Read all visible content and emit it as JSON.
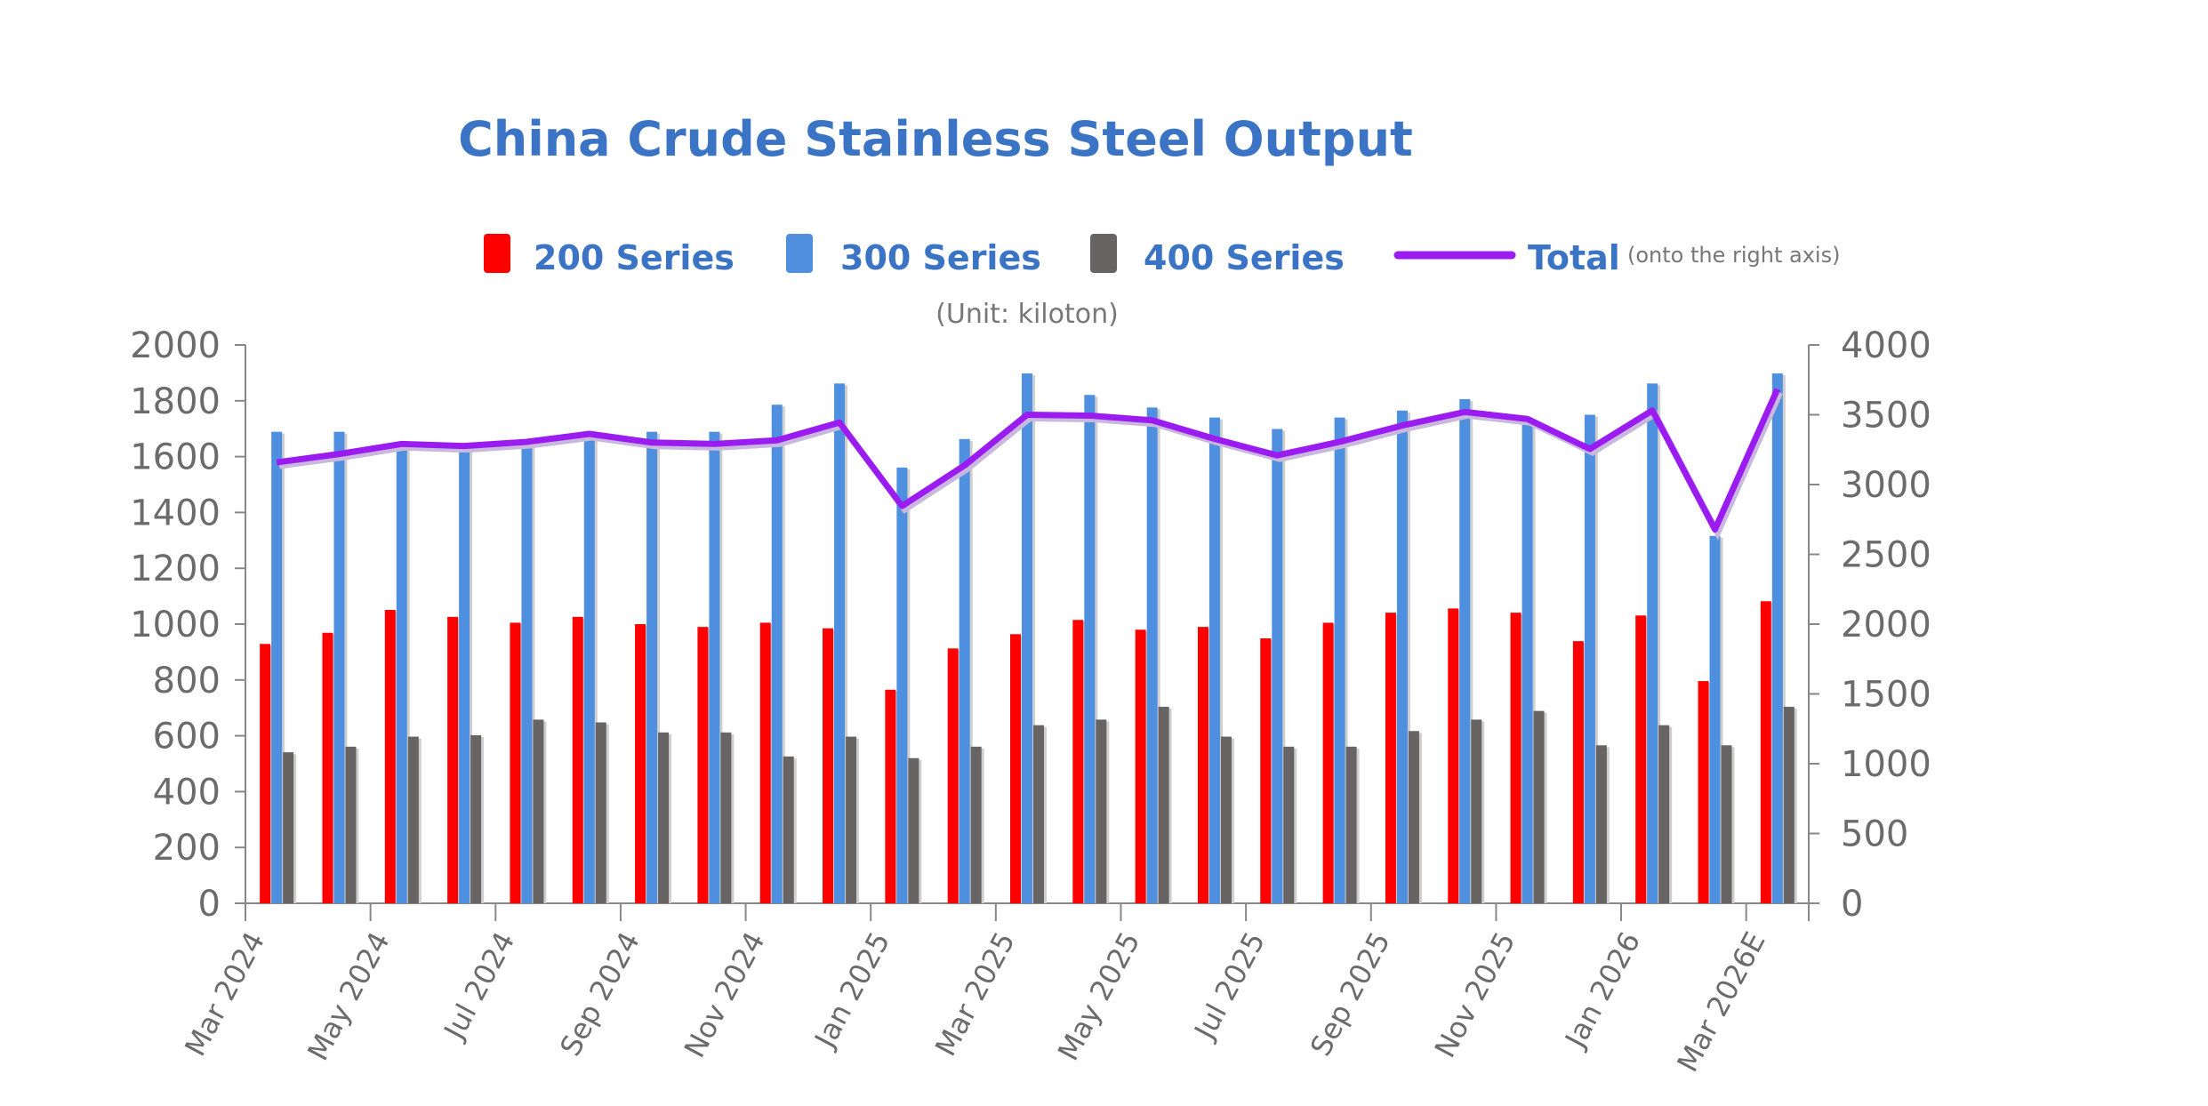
{
  "chart_data": {
    "type": "bar",
    "title": "China Crude Stainless Steel Output",
    "unit_note": "(Unit: kiloton)",
    "categories": [
      "Mar 2024",
      "Apr 2024",
      "May 2024",
      "Jun 2024",
      "Jul 2024",
      "Aug 2024",
      "Sep 2024",
      "Oct 2024",
      "Nov 2024",
      "Dec 2024",
      "Jan 2025",
      "Feb 2025",
      "Mar 2025",
      "Apr 2025",
      "May 2025",
      "Jun 2025",
      "Jul 2025",
      "Aug 2025",
      "Sep 2025",
      "Oct 2025",
      "Nov 2025",
      "Dec 2025",
      "Jan 2026",
      "Feb 2026",
      "Mar 2026E"
    ],
    "x_tick_labels": [
      "Mar 2024",
      "May 2024",
      "Jul 2024",
      "Sep 2024",
      "Nov 2024",
      "Jan 2025",
      "Mar 2025",
      "May 2025",
      "Jul 2025",
      "Sep 2025",
      "Nov 2025",
      "Jan 2026",
      "Mar 2026E"
    ],
    "series": [
      {
        "name": "200 Series",
        "axis": "left",
        "type": "bar",
        "color": "#ff0000",
        "values": [
          929,
          969,
          1051,
          1026,
          1005,
          1026,
          1000,
          990,
          1005,
          985,
          765,
          913,
          964,
          1015,
          980,
          990,
          949,
          1005,
          1041,
          1056,
          1041,
          939,
          1031,
          796,
          1082
        ]
      },
      {
        "name": "300 Series",
        "axis": "left",
        "type": "bar",
        "color": "#4f8fdf",
        "values": [
          1689,
          1689,
          1643,
          1648,
          1643,
          1689,
          1689,
          1689,
          1786,
          1862,
          1561,
          1663,
          1898,
          1821,
          1776,
          1740,
          1699,
          1740,
          1765,
          1806,
          1740,
          1750,
          1862,
          1316,
          1898
        ]
      },
      {
        "name": "400 Series",
        "axis": "left",
        "type": "bar",
        "color": "#686464",
        "values": [
          541,
          561,
          597,
          602,
          658,
          648,
          612,
          612,
          526,
          597,
          520,
          561,
          638,
          658,
          704,
          597,
          561,
          561,
          617,
          658,
          689,
          566,
          638,
          566,
          704
        ]
      },
      {
        "name": "Total",
        "axis": "right",
        "type": "line",
        "color": "#9b1cf0",
        "values": [
          3159,
          3219,
          3291,
          3276,
          3306,
          3363,
          3301,
          3291,
          3317,
          3444,
          2846,
          3137,
          3500,
          3494,
          3460,
          3327,
          3209,
          3306,
          3423,
          3520,
          3470,
          3255,
          3531,
          2678,
          3684
        ]
      }
    ],
    "legend_note": "(onto the right axis)",
    "ylim": [
      0,
      2000
    ],
    "y_ticks": [
      0,
      200,
      400,
      600,
      800,
      1000,
      1200,
      1400,
      1600,
      1800,
      2000
    ],
    "y2lim": [
      0,
      4000
    ],
    "y2_ticks": [
      0,
      500,
      1000,
      1500,
      2000,
      2500,
      3000,
      3500,
      4000
    ],
    "grid": false,
    "legend_position": "top"
  }
}
